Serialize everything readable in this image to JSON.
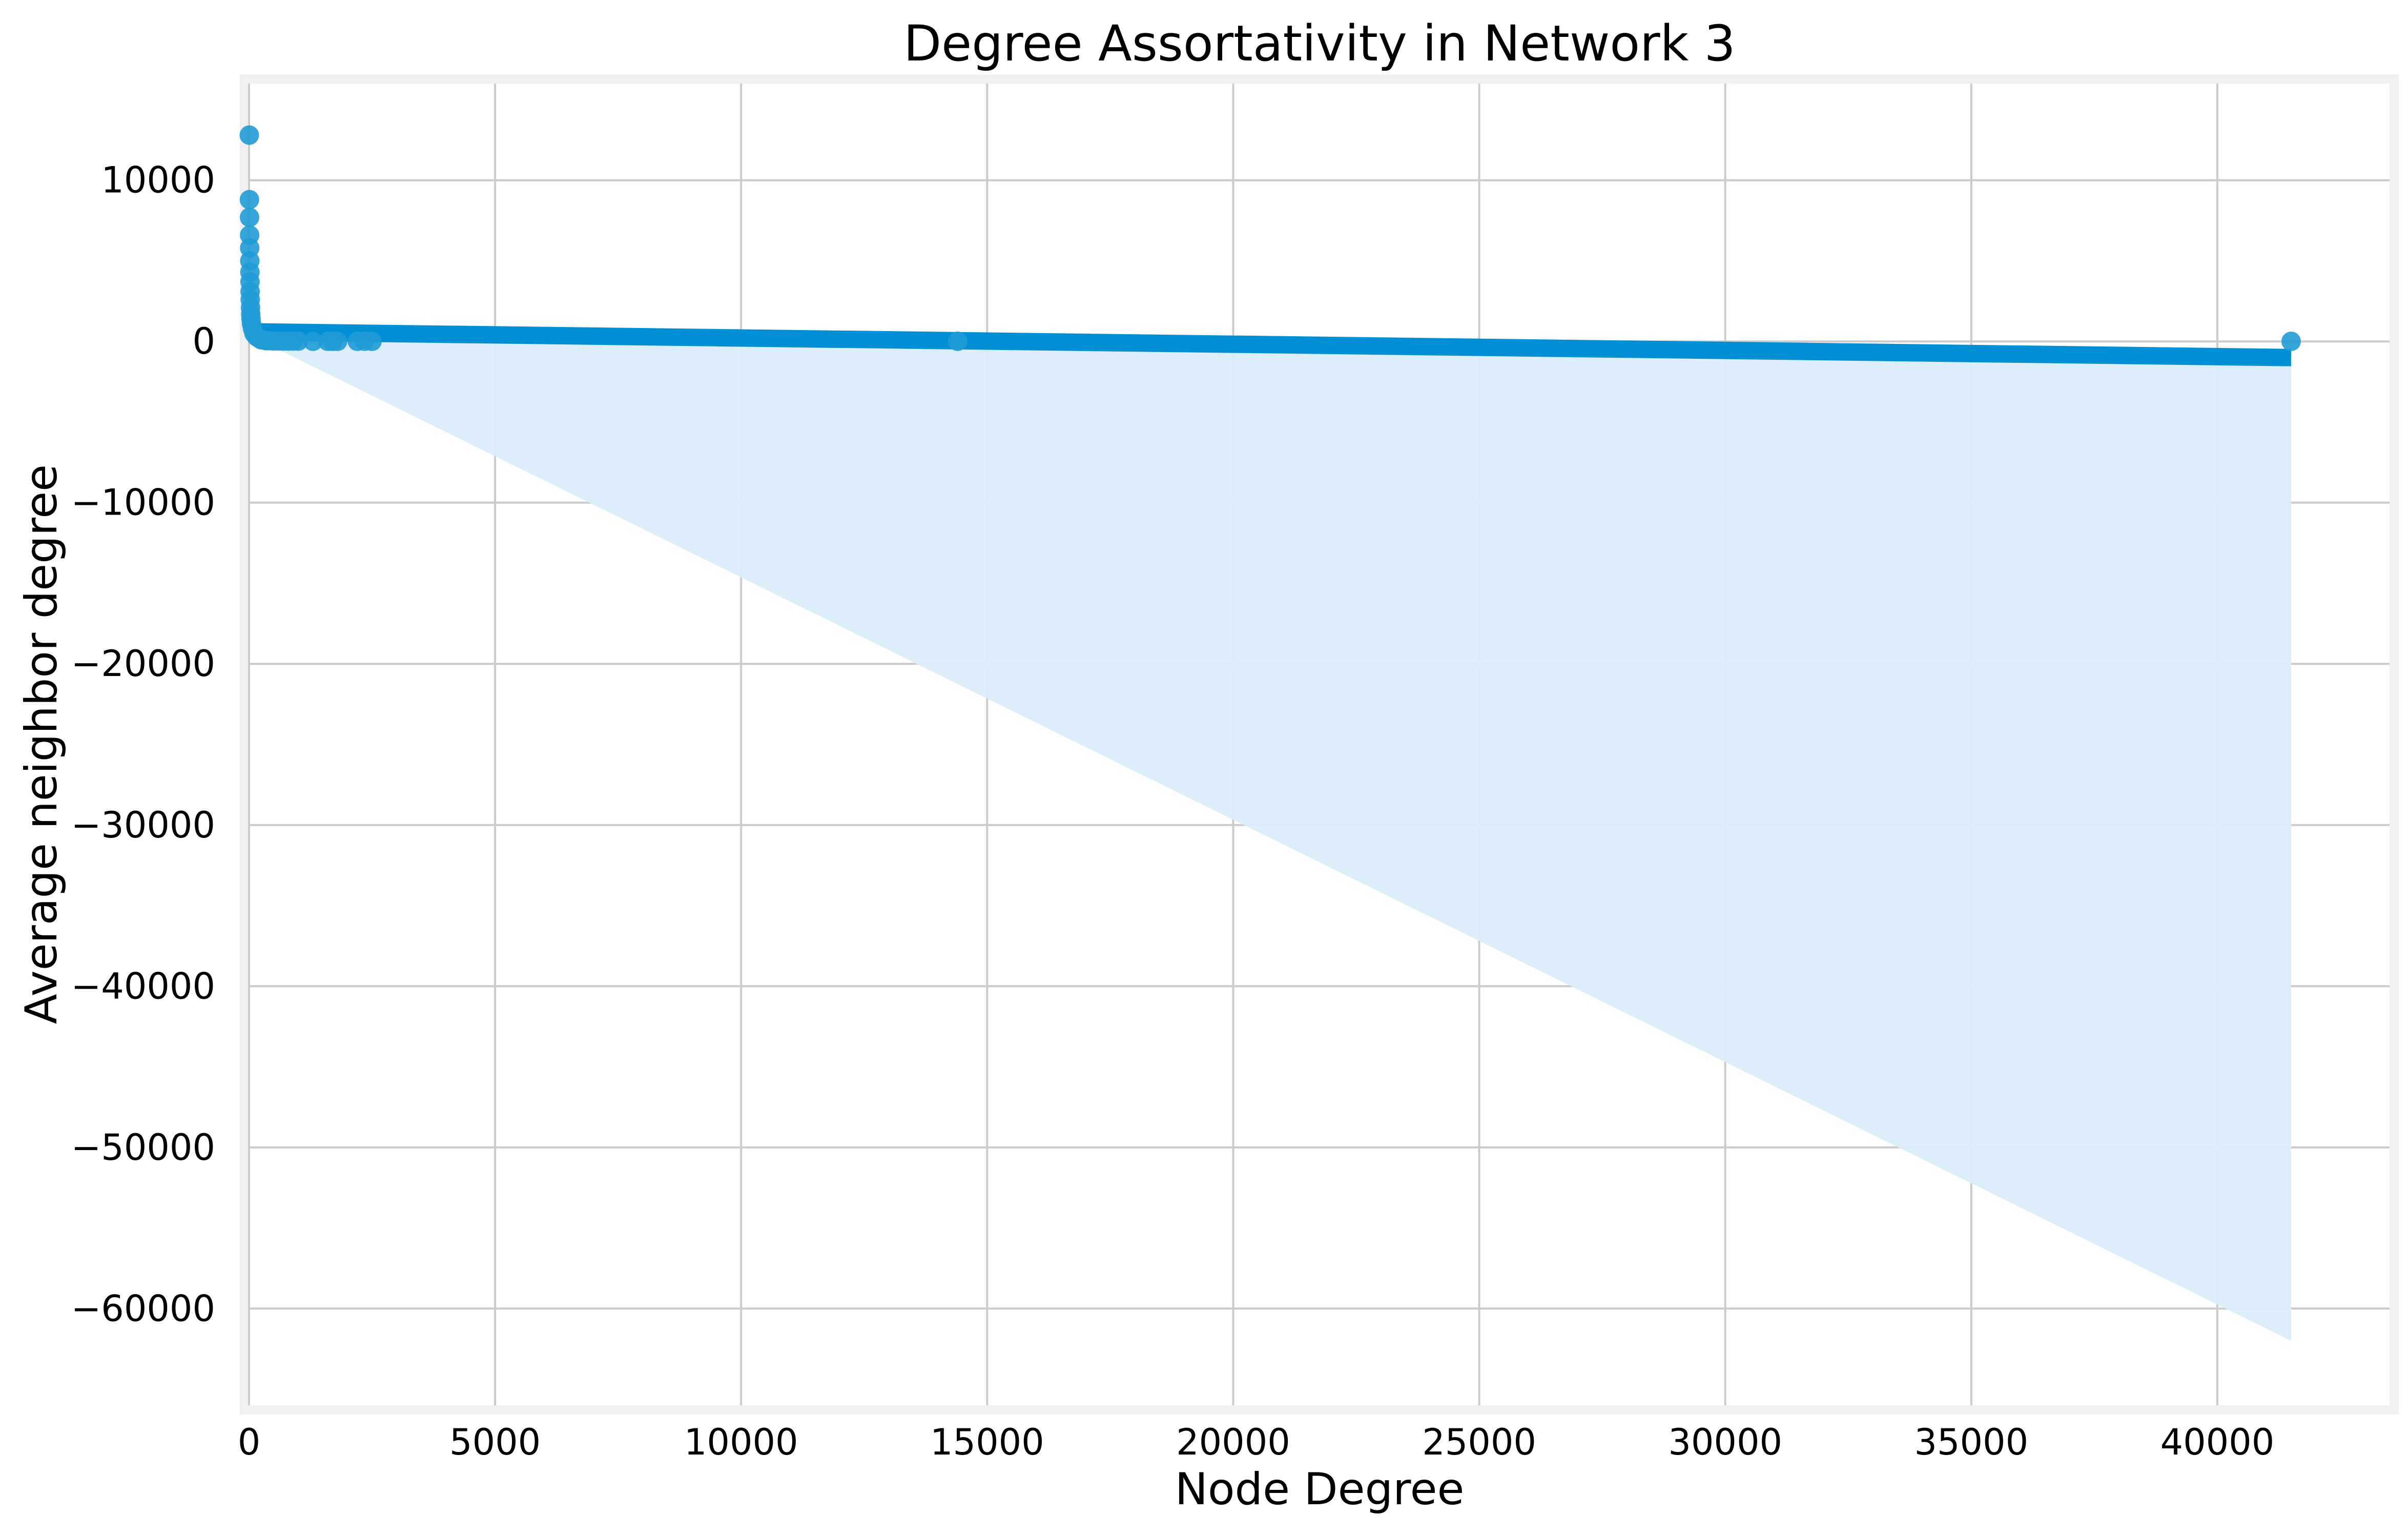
{
  "chart_data": {
    "type": "scatter",
    "title": "Degree Assortativity in Network 3",
    "xlabel": "Node Degree",
    "ylabel": "Average neighbor degree",
    "xlim": [
      0,
      43500
    ],
    "ylim": [
      -66000,
      16000
    ],
    "xticks": [
      0,
      5000,
      10000,
      15000,
      20000,
      25000,
      30000,
      35000,
      40000
    ],
    "yticks": [
      10000,
      0,
      -10000,
      -20000,
      -30000,
      -40000,
      -50000,
      -60000
    ],
    "grid": true,
    "legend": "none",
    "colors": {
      "points": "#1f9bd6",
      "regression": "#008fd5",
      "band": "#d9edf9"
    },
    "points": [
      {
        "x": 5,
        "y": 12800
      },
      {
        "x": 8,
        "y": 8800
      },
      {
        "x": 10,
        "y": 7700
      },
      {
        "x": 12,
        "y": 6600
      },
      {
        "x": 14,
        "y": 5800
      },
      {
        "x": 16,
        "y": 5000
      },
      {
        "x": 18,
        "y": 4300
      },
      {
        "x": 20,
        "y": 3700
      },
      {
        "x": 22,
        "y": 3100
      },
      {
        "x": 25,
        "y": 2600
      },
      {
        "x": 30,
        "y": 2100
      },
      {
        "x": 35,
        "y": 1700
      },
      {
        "x": 40,
        "y": 1400
      },
      {
        "x": 50,
        "y": 1100
      },
      {
        "x": 70,
        "y": 800
      },
      {
        "x": 100,
        "y": 500
      },
      {
        "x": 150,
        "y": 300
      },
      {
        "x": 200,
        "y": 200
      },
      {
        "x": 250,
        "y": 100
      },
      {
        "x": 300,
        "y": 100
      },
      {
        "x": 350,
        "y": 50
      },
      {
        "x": 400,
        "y": 50
      },
      {
        "x": 500,
        "y": 30
      },
      {
        "x": 600,
        "y": 30
      },
      {
        "x": 700,
        "y": 20
      },
      {
        "x": 800,
        "y": 20
      },
      {
        "x": 900,
        "y": 20
      },
      {
        "x": 1000,
        "y": 20
      },
      {
        "x": 1300,
        "y": 10
      },
      {
        "x": 1600,
        "y": 10
      },
      {
        "x": 1700,
        "y": 10
      },
      {
        "x": 1800,
        "y": 10
      },
      {
        "x": 2200,
        "y": 10
      },
      {
        "x": 2350,
        "y": 10
      },
      {
        "x": 2500,
        "y": 10
      },
      {
        "x": 14400,
        "y": 10
      },
      {
        "x": 41500,
        "y": 5
      }
    ],
    "regression": {
      "x": [
        0,
        41500
      ],
      "y": [
        600,
        -1000
      ]
    },
    "confidence_band": {
      "x": [
        0,
        41500
      ],
      "lower": [
        400,
        -62000
      ],
      "upper": [
        700,
        -800
      ]
    }
  }
}
